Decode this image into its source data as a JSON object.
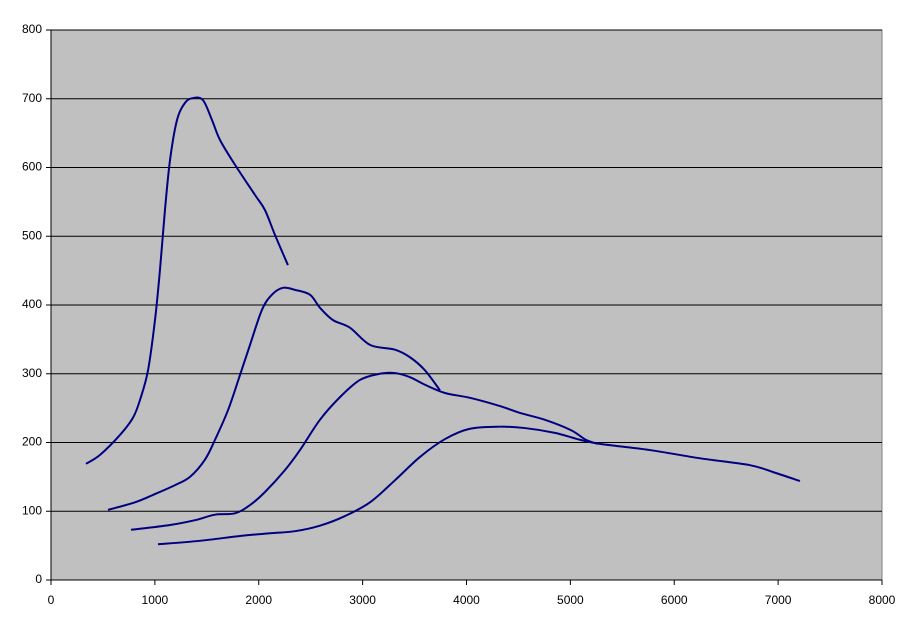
{
  "chart_data": {
    "type": "line",
    "color": "#000080",
    "plot_background": "#c0c0c0",
    "grid": true,
    "xlim": [
      0,
      8000
    ],
    "xticks": [
      0,
      1000,
      2000,
      3000,
      4000,
      5000,
      6000,
      7000,
      8000
    ],
    "ylim": [
      0,
      800
    ],
    "yticks": [
      0,
      100,
      200,
      300,
      400,
      500,
      600,
      700,
      800
    ],
    "series": [
      {
        "color": "#000080",
        "x": [
          337,
          472,
          664,
          789,
          857,
          934,
          1001,
          1049,
          1097,
          1146,
          1213,
          1290,
          1367,
          1463,
          1550,
          1627,
          1771,
          1964,
          2060,
          2156,
          2281
        ],
        "values": [
          169,
          182,
          211,
          236,
          262,
          305,
          378,
          451,
          538,
          611,
          669,
          694,
          701,
          698,
          669,
          640,
          604,
          560,
          538,
          502,
          458
        ]
      },
      {
        "color": "#000080",
        "x": [
          549,
          809,
          1001,
          1194,
          1338,
          1482,
          1579,
          1704,
          1819,
          1916,
          2031,
          2127,
          2233,
          2349,
          2493,
          2589,
          2715,
          2878,
          3071,
          3311,
          3456,
          3600,
          3744
        ],
        "values": [
          102,
          113,
          125,
          138,
          150,
          175,
          204,
          247,
          298,
          342,
          393,
          415,
          425,
          422,
          415,
          396,
          378,
          367,
          342,
          335,
          324,
          305,
          276
        ]
      },
      {
        "color": "#000080",
        "x": [
          770,
          1146,
          1386,
          1579,
          1771,
          1916,
          2060,
          2253,
          2397,
          2589,
          2782,
          2974,
          3167,
          3311,
          3456,
          3600,
          3793,
          4033,
          4322,
          4515,
          4755,
          5005,
          5149,
          5263
        ],
        "values": [
          73,
          80,
          87,
          95,
          97,
          109,
          128,
          160,
          189,
          233,
          266,
          291,
          300,
          301,
          295,
          284,
          272,
          265,
          253,
          243,
          233,
          218,
          204,
          198
        ]
      },
      {
        "color": "#000080",
        "x": [
          1030,
          1434,
          1819,
          2108,
          2349,
          2589,
          2830,
          3071,
          3311,
          3552,
          3793,
          4033,
          4322,
          4563,
          4851,
          5092,
          5285,
          5766,
          6248,
          6729,
          6970,
          7210
        ],
        "values": [
          52,
          57,
          64,
          68,
          71,
          79,
          93,
          113,
          145,
          179,
          205,
          220,
          223,
          221,
          214,
          204,
          198,
          189,
          177,
          167,
          156,
          144
        ]
      }
    ]
  }
}
